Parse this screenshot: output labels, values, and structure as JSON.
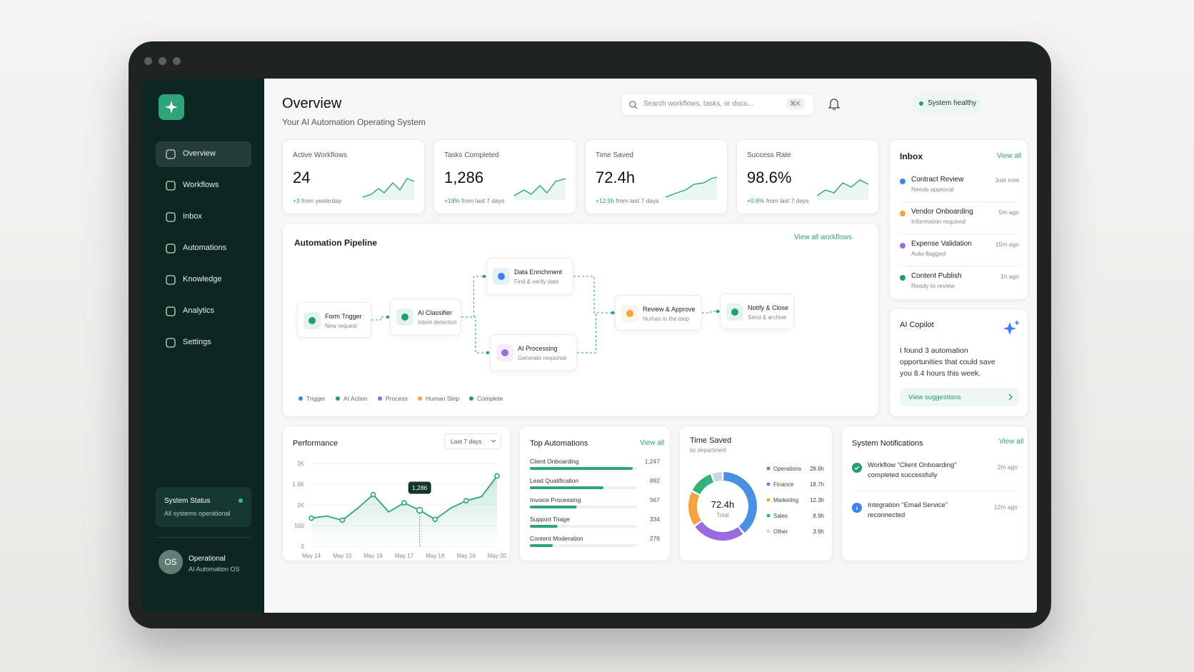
{
  "sidebar": {
    "nav": [
      "Overview",
      "Workflows",
      "Inbox",
      "Automations",
      "Knowledge",
      "Analytics",
      "Settings"
    ],
    "status": {
      "title": "System Status",
      "text": "All systems operational"
    },
    "user": {
      "initials": "OS",
      "name": "Operational",
      "role": "AI Automation OS"
    }
  },
  "header": {
    "title": "Overview",
    "subtitle": "Your AI Automation Operating System",
    "search": "Search workflows, tasks, or docs...",
    "shortcut": "⌘K",
    "status": "System healthy"
  },
  "stats": [
    {
      "label": "Active Workflows",
      "value": "24",
      "delta": "+3",
      "note": "from yesterday"
    },
    {
      "label": "Tasks Completed",
      "value": "1,286",
      "delta": "+18%",
      "note": "from last 7 days"
    },
    {
      "label": "Time Saved",
      "value": "72.4h",
      "delta": "+12.5h",
      "note": "from last 7 days"
    },
    {
      "label": "Success Rate",
      "value": "98.6%",
      "delta": "+0.8%",
      "note": "from last 7 days"
    }
  ],
  "inbox": {
    "title": "Inbox",
    "link": "View all",
    "items": [
      {
        "title": "Contract Review",
        "subtitle": "Needs approval",
        "time": "Just now",
        "color": "#3b82f6"
      },
      {
        "title": "Vendor Onboarding",
        "subtitle": "Information required",
        "time": "5m ago",
        "color": "#f5a340"
      },
      {
        "title": "Expense Validation",
        "subtitle": "Auto-flagged",
        "time": "15m ago",
        "color": "#9b6ce0"
      },
      {
        "title": "Content Publish",
        "subtitle": "Ready to review",
        "time": "1h ago",
        "color": "#22a06b"
      }
    ]
  },
  "pipeline": {
    "title": "Automation Pipeline",
    "link": "View all workflows",
    "nodes": [
      {
        "title": "Form Trigger",
        "subtitle": "New request",
        "color": "#22a06b"
      },
      {
        "title": "AI Classifier",
        "subtitle": "Intent detection",
        "color": "#22a06b"
      },
      {
        "title": "Data Enrichment",
        "subtitle": "Find & verify data",
        "color": "#3b82f6"
      },
      {
        "title": "AI Processing",
        "subtitle": "Generate response",
        "color": "#9b6ce0"
      },
      {
        "title": "Review & Approve",
        "subtitle": "Human in the loop",
        "color": "#f5a340"
      },
      {
        "title": "Notify & Close",
        "subtitle": "Send & archive",
        "color": "#22a06b"
      }
    ],
    "legend": [
      {
        "name": "Trigger",
        "color": "#3b82f6"
      },
      {
        "name": "AI Action",
        "color": "#22a06b"
      },
      {
        "name": "Process",
        "color": "#6b7fe0"
      },
      {
        "name": "Human Step",
        "color": "#f5a340"
      },
      {
        "name": "Complete",
        "color": "#22a06b"
      }
    ]
  },
  "copilot": {
    "title": "AI Copilot",
    "message": "I found 3 automation opportunities that could save you 8.4 hours this week.",
    "action": "View suggestions"
  },
  "performance": {
    "type": "line",
    "title": "Performance",
    "range": "Last 7 days",
    "tooltip": "1,286",
    "categories": [
      "May 14",
      null,
      "May 15",
      null,
      "May 16",
      null,
      "May 17",
      null,
      "May 18",
      null,
      "May 19",
      null,
      "May 20"
    ],
    "values": [
      680,
      730,
      630,
      920,
      1250,
      830,
      1050,
      870,
      650,
      920,
      1100,
      1200,
      1700
    ],
    "color": "#2fa37a",
    "ylim": [
      0,
      2000
    ],
    "yticks": [
      0,
      500,
      {
        "value": 1000,
        "label": "1K"
      },
      {
        "value": 1500,
        "label": "1.5K"
      },
      {
        "value": 2000,
        "label": "2K"
      }
    ],
    "grid": true
  },
  "top_automations": {
    "type": "bar",
    "title": "Top Automations",
    "link": "View all",
    "categories": [
      "Client Onboarding",
      "Lead Qualification",
      "Invoice Processing",
      "Support Triage",
      "Content Moderation"
    ],
    "values": [
      1247,
      892,
      567,
      334,
      278
    ],
    "value_labels": [
      "1,247",
      "892",
      "567",
      "334",
      "278"
    ],
    "xlim": [
      0,
      1300
    ],
    "color": "#2fa37a"
  },
  "time_saved": {
    "type": "pie",
    "title": "Time Saved",
    "subtitle": "by department",
    "total": "72.4h",
    "total_label": "Total",
    "categories": [
      "Operations",
      "Finance",
      "Marketing",
      "Sales",
      "Other"
    ],
    "values": [
      28.6,
      18.7,
      12.3,
      8.9,
      3.9
    ],
    "value_labels": [
      "28.6h",
      "18.7h",
      "12.3h",
      "8.9h",
      "3.9h"
    ],
    "colors": [
      "#4a90e2",
      "#9b6ce0",
      "#f5a340",
      "#34b27b",
      "#cbd5e1"
    ]
  },
  "notifications": {
    "title": "System Notifications",
    "link": "View all",
    "items": [
      {
        "text": "Workflow “Client Onboarding” completed successfully",
        "time": "2m ago",
        "color": "#22a06b"
      },
      {
        "text": "Integration “Email Service” reconnected",
        "time": "12m ago",
        "color": "#3b82f6"
      }
    ]
  }
}
